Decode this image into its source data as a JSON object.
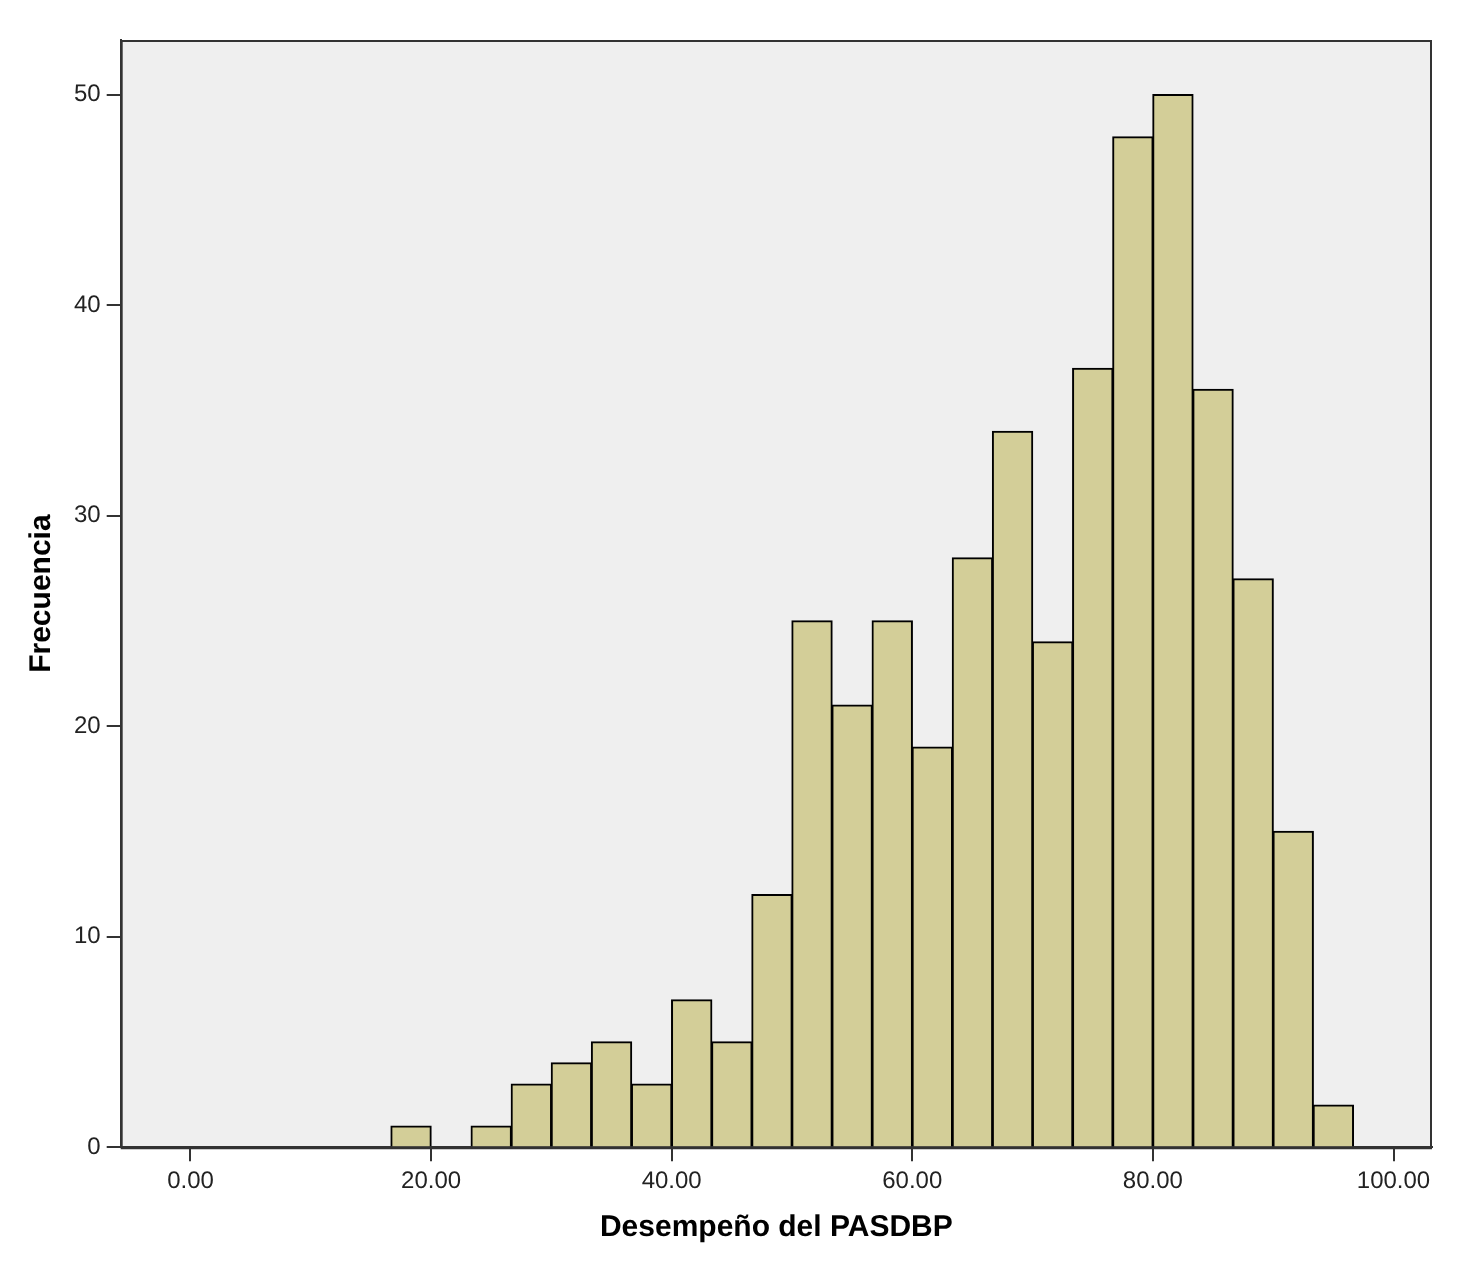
{
  "chart_data": {
    "type": "histogram",
    "xlabel": "Desempeño del PASDBP",
    "ylabel": "Frecuencia",
    "bins": [
      16.67,
      20,
      23.33,
      26.67,
      30,
      33.33,
      36.67,
      40,
      43.33,
      46.67,
      50,
      53.33,
      56.67,
      60,
      63.33,
      66.67,
      70,
      73.33,
      76.67,
      80,
      83.33,
      86.67,
      90,
      93.33,
      96.67
    ],
    "values": [
      1,
      0,
      1,
      3,
      4,
      5,
      3,
      7,
      5,
      12,
      25,
      21,
      25,
      19,
      28,
      34,
      24,
      37,
      48,
      50,
      36,
      27,
      15,
      2
    ],
    "color": "#d3ce98",
    "xlim": [
      -5.8,
      103.2
    ],
    "ylim": [
      0,
      52.6
    ],
    "xticks": [
      {
        "value": 0,
        "label": "0.00"
      },
      {
        "value": 20,
        "label": "20.00"
      },
      {
        "value": 40,
        "label": "40.00"
      },
      {
        "value": 60,
        "label": "60.00"
      },
      {
        "value": 80,
        "label": "80.00"
      },
      {
        "value": 100,
        "label": "100.00"
      }
    ],
    "yticks": [
      0,
      10,
      20,
      30,
      40,
      50
    ],
    "grid": false,
    "legend": false
  }
}
